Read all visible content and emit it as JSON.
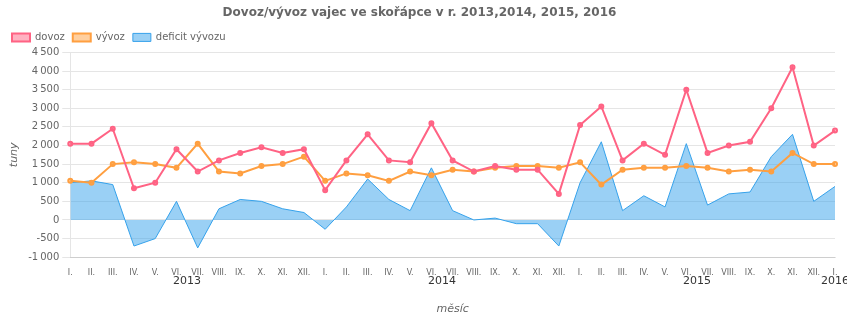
{
  "chart_data": {
    "type": "line",
    "title": "Dovoz/vývoz vajec ve skořápce v r. 2013,2014, 2015, 2016",
    "y_label": "tuny",
    "x_label": "měsíc",
    "annotations": [
      "2013",
      "2014",
      "2015",
      "2016"
    ],
    "categories": [
      "I.",
      "II.",
      "III.",
      "IV.",
      "V.",
      "VI.",
      "VII.",
      "VIII.",
      "IX.",
      "X.",
      "XI.",
      "XII.",
      "I.",
      "II.",
      "III.",
      "IV.",
      "V.",
      "VI.",
      "VII.",
      "VIII.",
      "IX.",
      "X.",
      "XI.",
      "XII.",
      "I.",
      "II.",
      "III.",
      "IV.",
      "V.",
      "VI.",
      "VII.",
      "VIII.",
      "IX.",
      "X.",
      "XI.",
      "XII.",
      "I."
    ],
    "series": [
      {
        "name": "deficit vývozu",
        "type": "area",
        "values": [
          1000,
          1050,
          950,
          -700,
          -500,
          500,
          -750,
          300,
          550,
          500,
          300,
          200,
          -250,
          350,
          1100,
          550,
          250,
          1400,
          250,
          0,
          50,
          -100,
          -100,
          -700,
          1000,
          2100,
          250,
          650,
          350,
          2050,
          400,
          700,
          750,
          1700,
          2300,
          500,
          900
        ]
      },
      {
        "name": "dovoz",
        "type": "line",
        "values": [
          2050,
          2050,
          2450,
          850,
          1000,
          1900,
          1300,
          1600,
          1800,
          1950,
          1800,
          1900,
          800,
          1600,
          2300,
          1600,
          1550,
          2600,
          1600,
          1300,
          1450,
          1350,
          1350,
          700,
          2550,
          3050,
          1600,
          2050,
          1750,
          3500,
          1800,
          2000,
          2100,
          3000,
          4100,
          2000,
          2400
        ]
      },
      {
        "name": "vývoz",
        "type": "line",
        "values": [
          1050,
          1000,
          1500,
          1550,
          1500,
          1400,
          2050,
          1300,
          1250,
          1450,
          1500,
          1700,
          1050,
          1250,
          1200,
          1050,
          1300,
          1200,
          1350,
          1300,
          1400,
          1450,
          1450,
          1400,
          1550,
          950,
          1350,
          1400,
          1400,
          1450,
          1400,
          1300,
          1350,
          1300,
          1800,
          1500,
          1500
        ]
      }
    ],
    "ylim": [
      -1000,
      4500
    ],
    "yticks": [
      {
        "value": -1000,
        "label": "-1 000"
      },
      -500,
      0,
      500,
      {
        "value": 1000,
        "label": "1 000"
      },
      {
        "value": 1500,
        "label": "1 500"
      },
      {
        "value": 2000,
        "label": "2 000"
      },
      {
        "value": 2500,
        "label": "2 500"
      },
      {
        "value": 3000,
        "label": "3 000"
      },
      {
        "value": 3500,
        "label": "3 500"
      },
      {
        "value": 4000,
        "label": "4 000"
      },
      {
        "value": 4500,
        "label": "4 500"
      }
    ],
    "grid": true,
    "legend": "upper left"
  }
}
